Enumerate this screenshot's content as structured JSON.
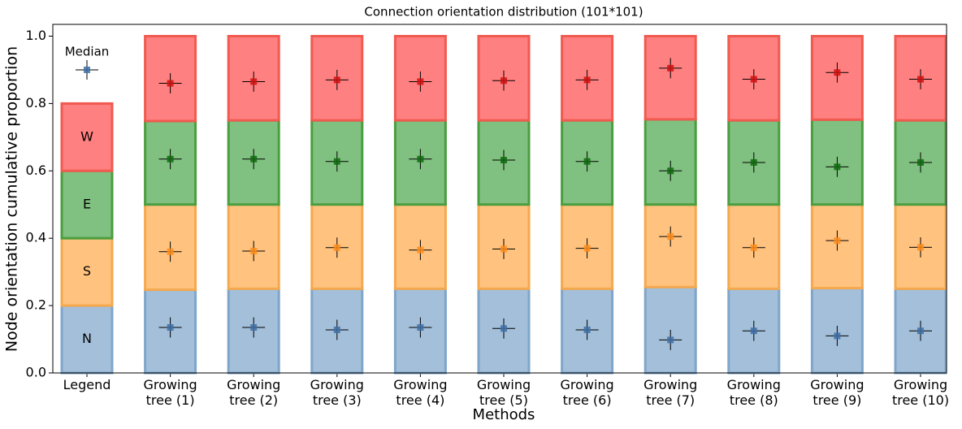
{
  "chart_data": {
    "type": "stacked_bar",
    "title": "Connection orientation distribution (101*101)",
    "ylabel": "Node orientation cumulative proportion",
    "xlabel": "Methods",
    "categories": [
      "Legend",
      "Growing tree (1)",
      "Growing tree (2)",
      "Growing tree (3)",
      "Growing tree (4)",
      "Growing tree (5)",
      "Growing tree (6)",
      "Growing tree (7)",
      "Growing tree (8)",
      "Growing tree (9)",
      "Growing tree (10)"
    ],
    "ylim": [
      0,
      1.035
    ],
    "yticks": [
      {
        "value": 0,
        "label": "0.0"
      },
      0.2,
      0.4,
      0.6,
      0.8,
      {
        "value": 1,
        "label": "1.0"
      }
    ],
    "legend_median": {
      "label": "Median",
      "value": 0.9
    },
    "series": [
      {
        "name": "N",
        "color": "#a3bfd9",
        "edge": "#7fa6ca",
        "marker": "#3f6ea5",
        "values": [
          0.2,
          0.247,
          0.25,
          0.25,
          0.25,
          0.25,
          0.25,
          0.255,
          0.25,
          0.252,
          0.25
        ],
        "medians": [
          null,
          0.135,
          0.135,
          0.128,
          0.135,
          0.132,
          0.128,
          0.098,
          0.125,
          0.11,
          0.125
        ],
        "errors": [
          null,
          0.03,
          0.03,
          0.03,
          0.03,
          0.03,
          0.03,
          0.03,
          0.03,
          0.03,
          0.03
        ]
      },
      {
        "name": "S",
        "color": "#ffc37f",
        "edge": "#f5a84e",
        "marker": "#ff8c1a",
        "values": [
          0.2,
          0.253,
          0.25,
          0.25,
          0.25,
          0.25,
          0.25,
          0.245,
          0.25,
          0.248,
          0.25
        ],
        "medians": [
          null,
          0.36,
          0.362,
          0.372,
          0.365,
          0.368,
          0.37,
          0.405,
          0.372,
          0.393,
          0.373
        ],
        "errors": [
          null,
          0.03,
          0.03,
          0.03,
          0.03,
          0.03,
          0.03,
          0.03,
          0.03,
          0.03,
          0.03
        ]
      },
      {
        "name": "E",
        "color": "#80c080",
        "edge": "#4b9e3f",
        "marker": "#0f6a0f",
        "values": [
          0.2,
          0.248,
          0.25,
          0.25,
          0.25,
          0.25,
          0.25,
          0.253,
          0.25,
          0.252,
          0.25
        ],
        "medians": [
          null,
          0.635,
          0.635,
          0.628,
          0.635,
          0.632,
          0.628,
          0.6,
          0.625,
          0.612,
          0.625
        ],
        "errors": [
          null,
          0.03,
          0.03,
          0.03,
          0.03,
          0.03,
          0.03,
          0.03,
          0.03,
          0.03,
          0.03
        ]
      },
      {
        "name": "W",
        "color": "#ff8080",
        "edge": "#f05a50",
        "marker": "#d01010",
        "values": [
          0.2,
          0.252,
          0.25,
          0.25,
          0.25,
          0.25,
          0.25,
          0.247,
          0.25,
          0.248,
          0.25
        ],
        "medians": [
          null,
          0.86,
          0.865,
          0.87,
          0.865,
          0.868,
          0.87,
          0.905,
          0.872,
          0.892,
          0.872
        ],
        "errors": [
          null,
          0.03,
          0.03,
          0.03,
          0.03,
          0.03,
          0.03,
          0.03,
          0.03,
          0.03,
          0.03
        ]
      }
    ]
  }
}
